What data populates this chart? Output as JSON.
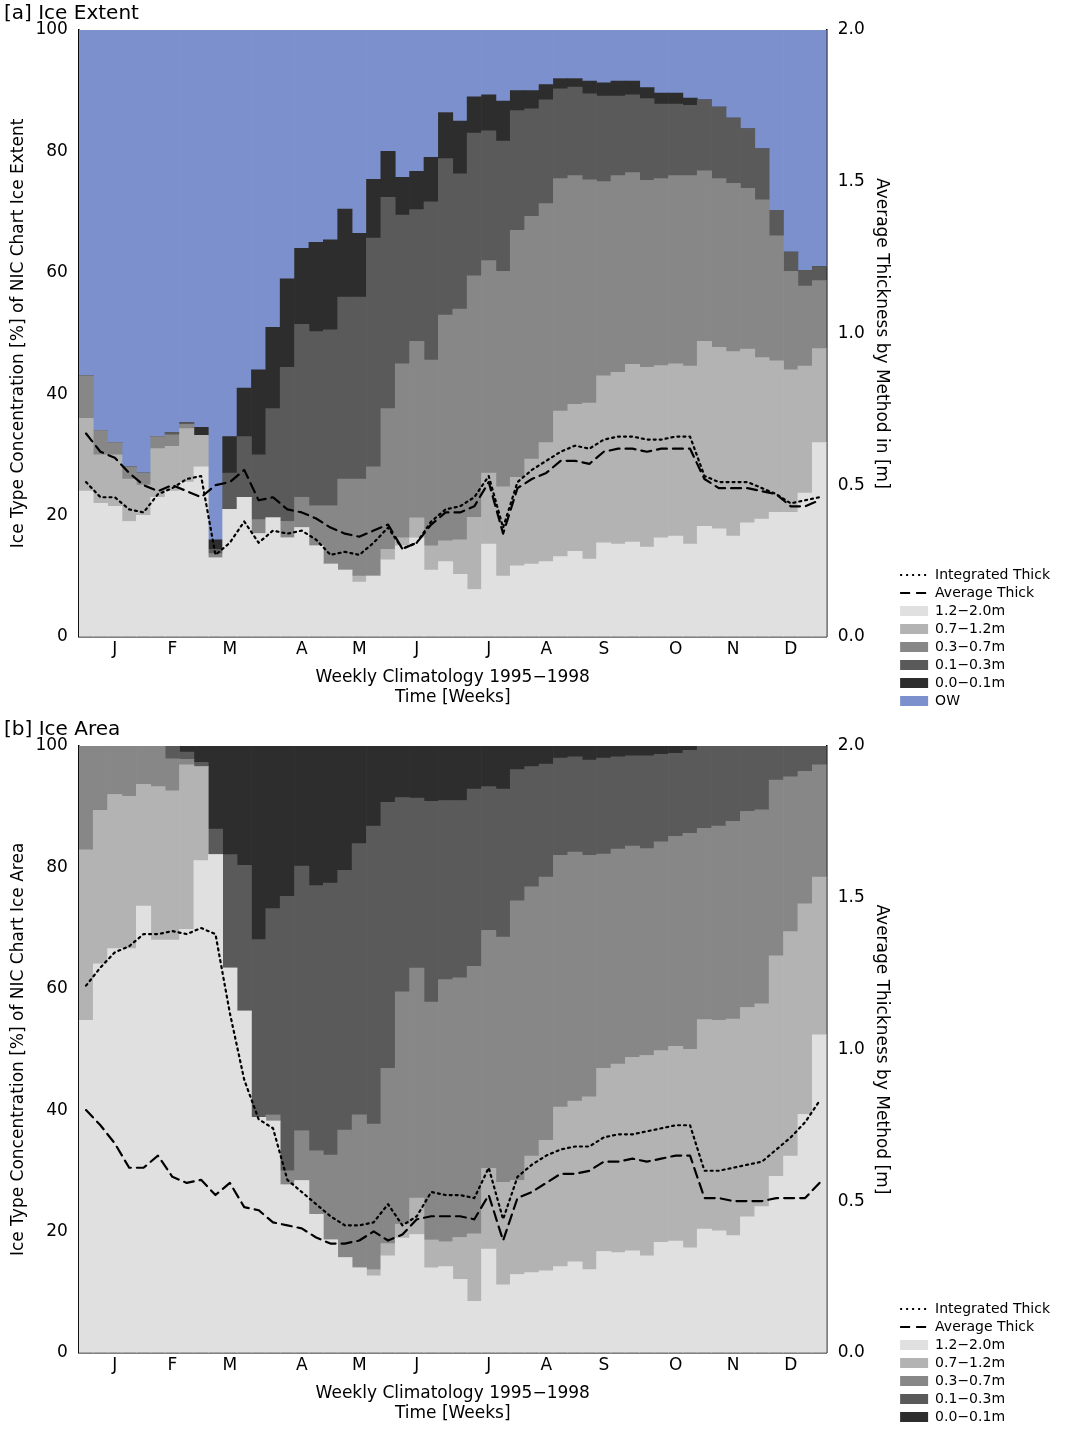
{
  "chart_data": [
    {
      "type": "bar",
      "title": "[a] Ice Extent",
      "xlabel": "Weekly Climatology 1995−1998\nTime [Weeks]",
      "ylabel": "Ice Type Concentration [%] of NIC Chart Ice Extent",
      "y2label": "Average Thickness by Method in [m]",
      "stacked": true,
      "legend": "bottom right",
      "grid": false,
      "marker": "none",
      "categories": [
        null,
        null,
        "J",
        null,
        null,
        null,
        "F",
        null,
        null,
        null,
        "M",
        null,
        null,
        null,
        null,
        "A",
        null,
        null,
        null,
        "M",
        null,
        null,
        null,
        "J",
        null,
        null,
        null,
        null,
        "J",
        null,
        null,
        null,
        "A",
        null,
        null,
        null,
        "S",
        null,
        null,
        null,
        null,
        "O",
        null,
        null,
        null,
        "N",
        null,
        null,
        null,
        "D",
        null,
        null
      ],
      "ylim": [
        0,
        100
      ],
      "yticks": [
        0,
        20,
        40,
        60,
        80,
        100
      ],
      "y2lim": [
        0,
        2
      ],
      "y2ticks": [
        {
          "value": 0,
          "label": "0.0"
        },
        {
          "value": 0.5,
          "label": "0.5"
        },
        {
          "value": 1,
          "label": "1.0"
        },
        {
          "value": 1.5,
          "label": "1.5"
        },
        {
          "value": 2,
          "label": "2.0"
        }
      ],
      "series": [
        {
          "name": "Integrated Thick",
          "type": "line",
          "axis": "y2",
          "line_style": "dotted",
          "color": "#000000",
          "values": [
            0.51,
            0.46,
            0.46,
            0.42,
            0.41,
            0.47,
            0.49,
            0.52,
            0.53,
            0.27,
            0.31,
            0.38,
            0.31,
            0.35,
            0.34,
            0.35,
            0.32,
            0.27,
            0.28,
            0.27,
            0.31,
            0.36,
            0.29,
            0.31,
            0.38,
            0.42,
            0.43,
            0.46,
            0.53,
            0.36,
            0.51,
            0.55,
            0.58,
            0.61,
            0.63,
            0.62,
            0.65,
            0.66,
            0.66,
            0.65,
            0.65,
            0.66,
            0.66,
            0.53,
            0.51,
            0.51,
            0.51,
            0.49,
            0.47,
            0.44,
            0.45,
            0.46
          ]
        },
        {
          "name": "Average Thick",
          "type": "line",
          "axis": "y2",
          "line_style": "dashed",
          "color": "#000000",
          "values": [
            0.67,
            0.61,
            0.59,
            0.54,
            0.5,
            0.48,
            0.5,
            0.48,
            0.46,
            0.5,
            0.51,
            0.55,
            0.45,
            0.46,
            0.42,
            0.41,
            0.39,
            0.36,
            0.34,
            0.33,
            0.35,
            0.37,
            0.29,
            0.31,
            0.37,
            0.41,
            0.41,
            0.43,
            0.51,
            0.34,
            0.49,
            0.52,
            0.54,
            0.58,
            0.58,
            0.57,
            0.61,
            0.62,
            0.62,
            0.61,
            0.62,
            0.62,
            0.62,
            0.52,
            0.49,
            0.49,
            0.49,
            0.48,
            0.47,
            0.43,
            0.43,
            0.45
          ]
        },
        {
          "name": "1.2−2.0m",
          "color": "#e0e0e0",
          "values": [
            24,
            22,
            21.5,
            19,
            20,
            23,
            24,
            25.5,
            28,
            13,
            21,
            23,
            17,
            19.6,
            16.3,
            18,
            15,
            12,
            11,
            9,
            10,
            12.7,
            15,
            16.3,
            11,
            12.4,
            10.3,
            7.8,
            15.3,
            10,
            11.7,
            12,
            12.4,
            13.2,
            14.1,
            12.8,
            15.5,
            15.3,
            15.6,
            14.8,
            16.3,
            16.6,
            15.3,
            18.2,
            17.8,
            16.6,
            18.8,
            19.4,
            20.5,
            20.5,
            23.7,
            32
          ]
        },
        {
          "name": "0.7−1.2m",
          "color": "#b3b3b3",
          "values": [
            12,
            8,
            8.5,
            7,
            5,
            8,
            7.4,
            8.8,
            5.2,
            0,
            0,
            0,
            0,
            0,
            0,
            0,
            0,
            0,
            0,
            1,
            0,
            1.7,
            1.3,
            3.3,
            4,
            3.4,
            5.7,
            11.9,
            11.7,
            14.7,
            14.6,
            17.3,
            19.6,
            24,
            24.2,
            25.7,
            27.5,
            28.3,
            29.3,
            29.6,
            28.4,
            28.4,
            29.3,
            30.5,
            29.9,
            30.4,
            28.6,
            26.6,
            25,
            23.5,
            20.9,
            15.5
          ]
        },
        {
          "name": "0.3−0.7m",
          "color": "#878787",
          "values": [
            7,
            4,
            2,
            2,
            2,
            2,
            1.9,
            0.7,
            0,
            0.7,
            0,
            0,
            2.3,
            0,
            2.7,
            5,
            6.6,
            9.6,
            15,
            16,
            18,
            23.2,
            28.7,
            29.1,
            30.6,
            37.2,
            38,
            39.8,
            35,
            35.5,
            40.7,
            40,
            39.4,
            38.3,
            37.7,
            36.8,
            32,
            32.4,
            31.6,
            30.8,
            30.8,
            31,
            31.4,
            28.1,
            27.8,
            27.7,
            26.5,
            26,
            20.6,
            16.2,
            13.2,
            11.2
          ]
        },
        {
          "name": "0.1−0.3m",
          "color": "#5a5a5a",
          "values": [
            0,
            0,
            0,
            0,
            0,
            0,
            0.4,
            0.3,
            0,
            0.7,
            6,
            10,
            10.7,
            18,
            25.4,
            28.5,
            28.7,
            29,
            30,
            30,
            37.7,
            34.8,
            24.5,
            21.7,
            26.1,
            25.8,
            22.3,
            23.5,
            21.4,
            21.5,
            19.7,
            17.7,
            17.1,
            14.8,
            14.6,
            14.2,
            14.1,
            13.1,
            12.8,
            13.5,
            12.3,
            11.8,
            11.6,
            11.7,
            11.8,
            10.8,
            9.8,
            8.4,
            4.2,
            3.2,
            2.6,
            2.3
          ]
        },
        {
          "name": "0.0−0.1m",
          "color": "#2d2d2d",
          "values": [
            0,
            0,
            0,
            0,
            0,
            0,
            0,
            0,
            1.3,
            1.6,
            6,
            8,
            14,
            13.4,
            14.6,
            12.5,
            14.7,
            14.8,
            14.5,
            10.5,
            9.7,
            7.6,
            6.2,
            6.3,
            7.3,
            7.6,
            8.7,
            6,
            5.9,
            6.6,
            3.3,
            3,
            2.5,
            1.7,
            1.4,
            2.1,
            2.2,
            2.5,
            2.3,
            1.8,
            1.8,
            1.8,
            1.2,
            0,
            0,
            0,
            0,
            0,
            0,
            0,
            0,
            0
          ]
        },
        {
          "name": "OW",
          "color": "#7b90cc",
          "values": [
            57,
            66,
            68,
            72,
            73,
            67,
            66.3,
            64.7,
            65.5,
            84,
            67,
            59,
            56,
            49,
            41,
            36,
            35,
            34.6,
            29.5,
            33.5,
            24.6,
            20,
            24.3,
            23.3,
            21,
            13.6,
            15,
            11,
            10.7,
            11.7,
            10,
            10,
            9,
            8,
            8,
            8.4,
            8.7,
            8.4,
            8.4,
            9.5,
            10.4,
            10.4,
            11.2,
            11.5,
            12.7,
            14.5,
            16.3,
            19.6,
            29.7,
            36.6,
            39.6,
            39
          ]
        }
      ]
    },
    {
      "type": "bar",
      "title": "[b] Ice Area",
      "xlabel": "Weekly Climatology 1995−1998\nTime [Weeks]",
      "ylabel": "Ice Type Concentration [%] of NIC Chart Ice Area",
      "y2label": "Average Thickness by Method [m]",
      "stacked": true,
      "legend": "bottom right",
      "grid": false,
      "marker": "none",
      "categories": [
        null,
        null,
        "J",
        null,
        null,
        null,
        "F",
        null,
        null,
        null,
        "M",
        null,
        null,
        null,
        null,
        "A",
        null,
        null,
        null,
        "M",
        null,
        null,
        null,
        "J",
        null,
        null,
        null,
        null,
        "J",
        null,
        null,
        null,
        "A",
        null,
        null,
        null,
        "S",
        null,
        null,
        null,
        null,
        "O",
        null,
        null,
        null,
        "N",
        null,
        null,
        null,
        "D",
        null,
        null
      ],
      "ylim": [
        0,
        100
      ],
      "yticks": [
        0,
        20,
        40,
        60,
        80,
        100
      ],
      "y2lim": [
        0,
        2
      ],
      "y2ticks": [
        {
          "value": 0,
          "label": "0.0"
        },
        {
          "value": 0.5,
          "label": "0.5"
        },
        {
          "value": 1,
          "label": "1.0"
        },
        {
          "value": 1.5,
          "label": "1.5"
        },
        {
          "value": 2,
          "label": "2.0"
        }
      ],
      "series": [
        {
          "name": "Integrated Thick",
          "type": "line",
          "axis": "y2",
          "line_style": "dotted",
          "color": "#000000",
          "values": [
            1.21,
            1.27,
            1.32,
            1.34,
            1.38,
            1.38,
            1.39,
            1.38,
            1.4,
            1.38,
            1.12,
            0.9,
            0.77,
            0.74,
            0.57,
            0.53,
            0.49,
            0.45,
            0.42,
            0.42,
            0.43,
            0.49,
            0.42,
            0.45,
            0.53,
            0.52,
            0.52,
            0.51,
            0.61,
            0.44,
            0.58,
            0.62,
            0.65,
            0.67,
            0.68,
            0.68,
            0.71,
            0.72,
            0.72,
            0.73,
            0.74,
            0.75,
            0.75,
            0.6,
            0.6,
            0.61,
            0.62,
            0.63,
            0.67,
            0.71,
            0.76,
            0.83
          ]
        },
        {
          "name": "Average Thick",
          "type": "line",
          "axis": "y2",
          "line_style": "dashed",
          "color": "#000000",
          "values": [
            0.8,
            0.75,
            0.69,
            0.61,
            0.61,
            0.65,
            0.58,
            0.56,
            0.57,
            0.52,
            0.56,
            0.48,
            0.47,
            0.43,
            0.42,
            0.41,
            0.38,
            0.36,
            0.36,
            0.37,
            0.4,
            0.37,
            0.39,
            0.44,
            0.45,
            0.45,
            0.45,
            0.44,
            0.52,
            0.37,
            0.51,
            0.53,
            0.56,
            0.59,
            0.59,
            0.6,
            0.63,
            0.63,
            0.64,
            0.63,
            0.64,
            0.65,
            0.65,
            0.51,
            0.51,
            0.5,
            0.5,
            0.5,
            0.51,
            0.51,
            0.51,
            0.56
          ]
        },
        {
          "name": "1.2−2.0m",
          "color": "#e0e0e0",
          "values": [
            54.8,
            64.1,
            66.6,
            66.6,
            73.6,
            68,
            68,
            69.8,
            81.1,
            82.1,
            63.4,
            56.3,
            38.8,
            38.2,
            27.7,
            28.4,
            22.8,
            18.6,
            15.7,
            14,
            12.7,
            16,
            18.9,
            19.5,
            14,
            14.2,
            12.1,
            8.5,
            17.1,
            11.2,
            12.9,
            13.2,
            13.5,
            14.2,
            15,
            13.7,
            16.7,
            16.5,
            16.8,
            16,
            18.2,
            18.4,
            17.3,
            20.4,
            20.1,
            19.3,
            22.4,
            24.1,
            29.1,
            32.4,
            39.3,
            52.4
          ]
        },
        {
          "name": "0.7−1.2m",
          "color": "#b3b3b3",
          "values": [
            28.1,
            25.3,
            25.4,
            25.1,
            20.1,
            25.3,
            24.6,
            27.1,
            15.5,
            0,
            0,
            0,
            0,
            0,
            0,
            0,
            0,
            0,
            0,
            0,
            1,
            2,
            2.3,
            6,
            4.6,
            4.1,
            6.9,
            11.1,
            13.3,
            16.9,
            15.5,
            19.2,
            21.5,
            26.3,
            26.5,
            28.5,
            30.2,
            31.1,
            31.9,
            33,
            31.6,
            32.1,
            32.7,
            34.5,
            34.7,
            35.7,
            34.5,
            33.4,
            36.3,
            37,
            34.7,
            26
          ]
        },
        {
          "name": "0.3−0.7m",
          "color": "#878787",
          "values": [
            17.1,
            10.6,
            8,
            8.3,
            6.3,
            6.7,
            5.3,
            0.9,
            0,
            0,
            0,
            0,
            0,
            1,
            2.3,
            8.2,
            10.5,
            14,
            21,
            25.2,
            24,
            28.9,
            38.3,
            37.9,
            39.2,
            43.2,
            42.8,
            44.1,
            39.2,
            40.4,
            46.1,
            44.4,
            43.4,
            41.5,
            41,
            39.8,
            35.3,
            35.4,
            34.8,
            34.1,
            34.4,
            34.6,
            35.6,
            31.5,
            32,
            32.6,
            32.3,
            32,
            29,
            25.5,
            21.8,
            18.5
          ]
        },
        {
          "name": "0.1−0.3m",
          "color": "#5a5a5a",
          "values": [
            0,
            0,
            0,
            0,
            0,
            0,
            2.1,
            1.2,
            0.7,
            4.2,
            18.7,
            24,
            29.3,
            34,
            45.2,
            43.6,
            43.7,
            44.8,
            42.8,
            44.7,
            49.1,
            43.8,
            32,
            28,
            33.1,
            29.5,
            29.2,
            29.2,
            23.7,
            24.4,
            21.6,
            19.8,
            18.6,
            16,
            15.7,
            15.7,
            15.8,
            15.2,
            14.9,
            15.3,
            14.4,
            13.7,
            13.7,
            13.6,
            13.2,
            12.4,
            10.8,
            10.5,
            5.6,
            5.1,
            4.2,
            3.1
          ]
        },
        {
          "name": "0.0−0.1m",
          "color": "#2d2d2d",
          "values": [
            0,
            0,
            0,
            0,
            0,
            0,
            0,
            1,
            2.7,
            13.7,
            17.9,
            19.7,
            31.9,
            26.8,
            24.8,
            19.8,
            23,
            22.6,
            20.5,
            16.1,
            13.2,
            9.3,
            8.5,
            8.6,
            9.1,
            9,
            9,
            7.1,
            6.7,
            7.1,
            3.9,
            3.4,
            3,
            2,
            1.8,
            2.3,
            2,
            1.8,
            1.6,
            1.6,
            1.4,
            1.2,
            0.7,
            0,
            0,
            0,
            0,
            0,
            0,
            0,
            0,
            0
          ]
        }
      ]
    }
  ]
}
